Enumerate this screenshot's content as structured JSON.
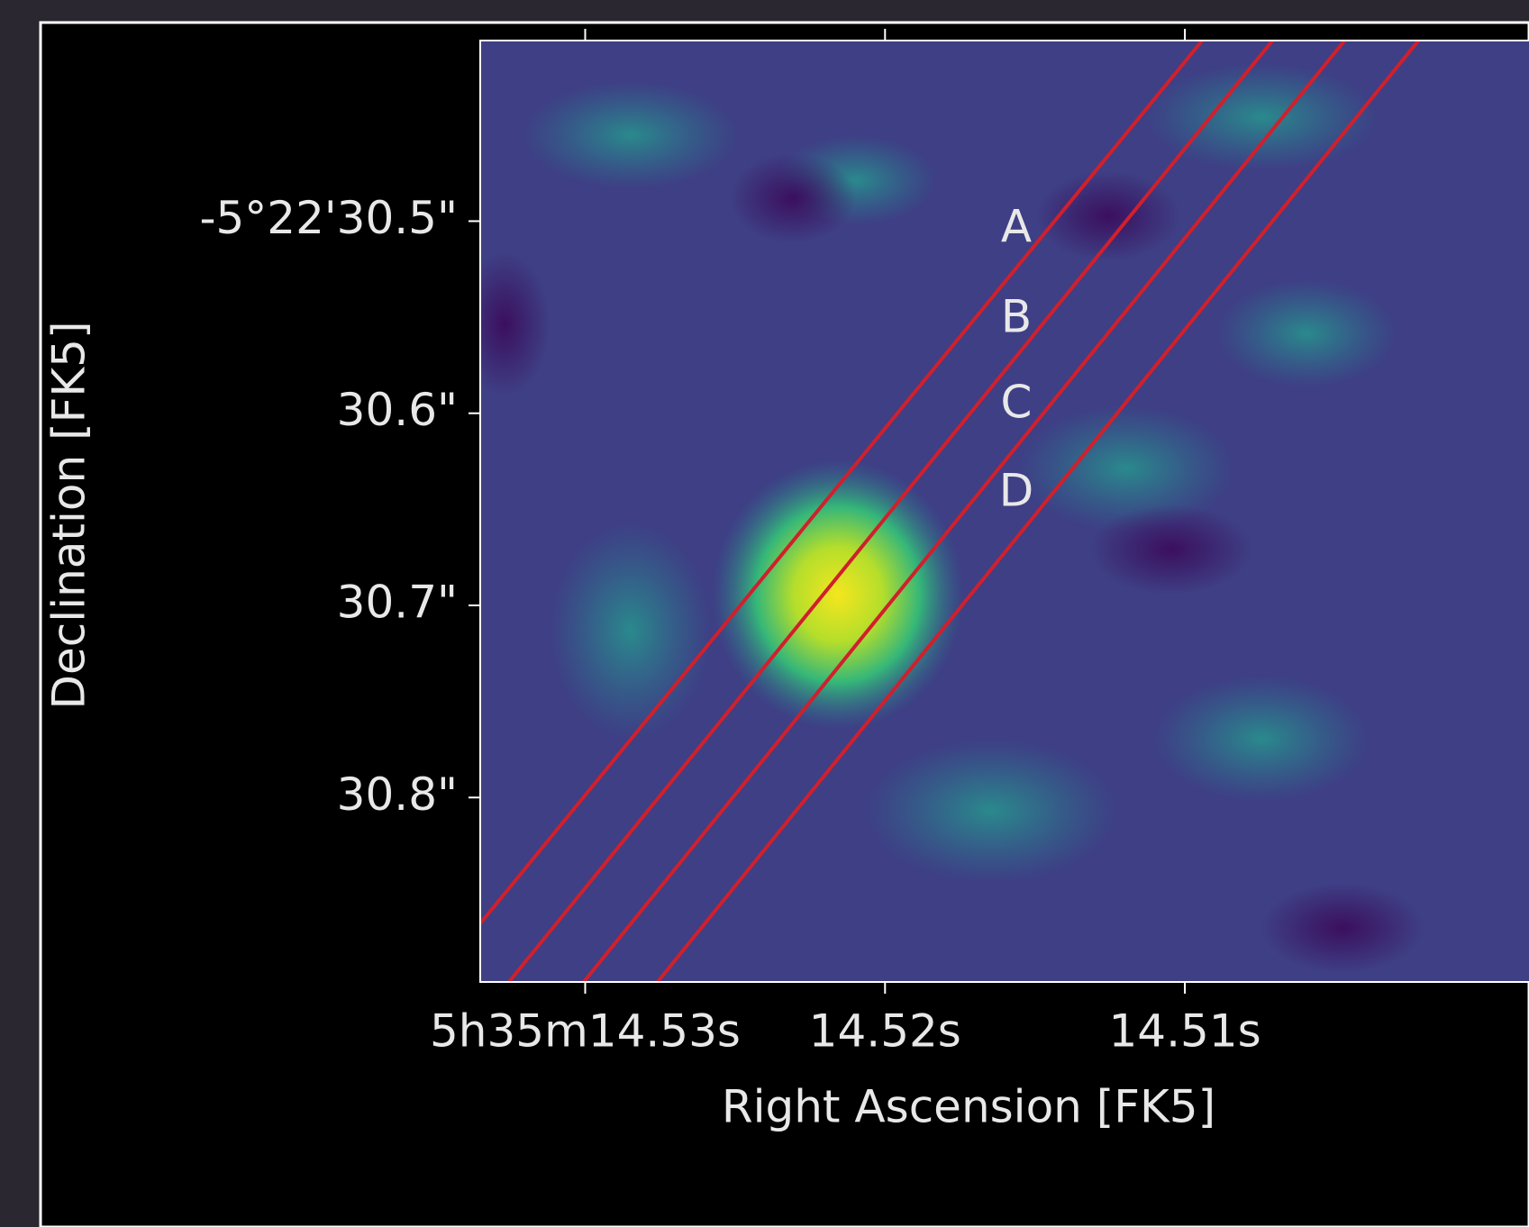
{
  "chart_data": {
    "type": "image",
    "x_label": "Right Ascension [FK5]",
    "y_label": "Declination [FK5]",
    "xlim": [
      14.5335,
      14.5024
    ],
    "ylim": [
      30.406,
      30.896
    ],
    "xticks": [
      {
        "value": 14.53,
        "label": "5h35m14.53s"
      },
      {
        "value": 14.52,
        "label": "14.52s"
      },
      {
        "value": 14.51,
        "label": "14.51s"
      }
    ],
    "yticks": [
      {
        "value": 30.5,
        "label": "-5°22'30.5\""
      },
      {
        "value": 30.6,
        "label": "30.6\""
      },
      {
        "value": 30.7,
        "label": "30.7\""
      },
      {
        "value": 30.8,
        "label": "30.8\""
      }
    ],
    "annotations": [
      "A",
      "B",
      "C",
      "D"
    ]
  }
}
